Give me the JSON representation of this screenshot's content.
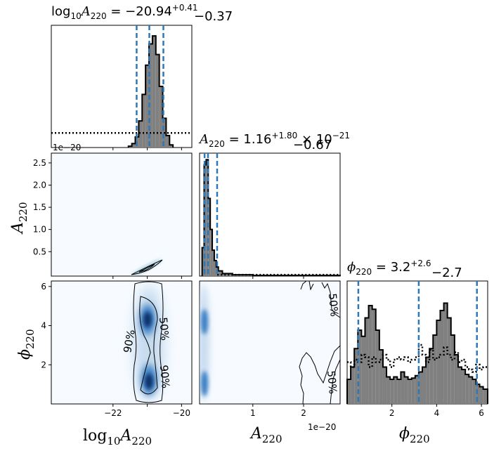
{
  "chart_data": {
    "type": "corner",
    "parameters": [
      "log10A220",
      "A220",
      "phi220"
    ],
    "titles": {
      "log10A220": {
        "prefix": "log",
        "sub": "10",
        "sym": "A",
        "symsub": "220",
        "eq": " = −20.94",
        "plus": "+0.41",
        "minus": "−0.37"
      },
      "A220": {
        "sym": "A",
        "symsub": "220",
        "eq": " = 1.16",
        "plus": "+1.80",
        "minus": "−0.67",
        "suffix": " × 10",
        "exp": "−21"
      },
      "phi220": {
        "sym": "ϕ",
        "symsub": "220",
        "eq": " = 3.2",
        "plus": "+2.6",
        "minus": "−2.7"
      }
    },
    "axis_labels": {
      "x_log10A220": {
        "prefix": "log",
        "sub": "10",
        "sym": "A",
        "symsub": "220"
      },
      "x_A220": {
        "sym": "A",
        "symsub": "220"
      },
      "x_phi220": {
        "sym": "ϕ",
        "symsub": "220"
      },
      "y_A220": {
        "sym": "A",
        "symsub": "220"
      },
      "y_phi220": {
        "sym": "ϕ",
        "symsub": "220"
      }
    },
    "offset_texts": {
      "a_top": "1e−20",
      "a_bottom": "1e−20"
    },
    "ranges": {
      "log10A220": [
        -23.8,
        -19.7
      ],
      "A220": [
        -0.05,
        2.72
      ],
      "A220_units": "1e-20",
      "phi220": [
        0.0,
        6.28
      ]
    },
    "ticks": {
      "log10A220": {
        "values": [
          -22,
          -21,
          -20
        ],
        "labels": [
          "−22",
          "",
          "−20"
        ]
      },
      "A220_x": {
        "values": [
          1,
          2
        ],
        "labels": [
          "1",
          "2"
        ]
      },
      "A220_y": {
        "values": [
          0.5,
          1.0,
          1.5,
          2.0,
          2.5
        ],
        "labels": [
          "0.5",
          "1.0",
          "1.5",
          "2.0",
          "2.5"
        ]
      },
      "phi220": {
        "values": [
          2,
          4,
          6
        ],
        "labels": [
          "2",
          "4",
          "6"
        ]
      }
    },
    "quantile_lines": {
      "log10A220": [
        -21.31,
        -20.94,
        -20.53
      ],
      "A220": [
        0.049,
        0.116,
        0.296
      ],
      "phi220": [
        0.5,
        3.2,
        5.8
      ]
    },
    "hist_log10A220": {
      "bin_edges": [
        -21.55,
        -21.45,
        -21.35,
        -21.25,
        -21.15,
        -21.05,
        -20.95,
        -20.85,
        -20.75,
        -20.65,
        -20.55,
        -20.45,
        -20.35,
        -20.25
      ],
      "posterior": [
        1,
        3,
        8,
        20,
        40,
        62,
        78,
        84,
        70,
        46,
        22,
        9,
        2
      ],
      "prior_level": 11,
      "ymax": 92
    },
    "hist_A220": {
      "bin_edges": [
        0.0,
        0.04,
        0.08,
        0.12,
        0.16,
        0.2,
        0.24,
        0.28,
        0.32,
        0.4,
        0.6,
        1.0,
        2.72
      ],
      "posterior": [
        22,
        86,
        90,
        60,
        36,
        20,
        12,
        7,
        4,
        2,
        1,
        0.5
      ],
      "prior_level": 1,
      "ymax": 95
    },
    "hist_phi220": {
      "bin_edges": [
        0.0,
        0.16,
        0.32,
        0.48,
        0.64,
        0.8,
        0.96,
        1.12,
        1.28,
        1.44,
        1.6,
        1.76,
        1.92,
        2.08,
        2.24,
        2.4,
        2.56,
        2.72,
        2.88,
        3.04,
        3.2,
        3.36,
        3.52,
        3.68,
        3.84,
        4.0,
        4.16,
        4.32,
        4.48,
        4.64,
        4.8,
        4.96,
        5.12,
        5.28,
        5.44,
        5.6,
        5.76,
        5.92,
        6.08,
        6.28
      ],
      "posterior": [
        20,
        30,
        45,
        60,
        55,
        70,
        80,
        77,
        60,
        44,
        30,
        22,
        20,
        22,
        20,
        26,
        22,
        20,
        21,
        23,
        26,
        30,
        38,
        45,
        56,
        68,
        76,
        82,
        70,
        56,
        40,
        30,
        28,
        24,
        22,
        20,
        16,
        14,
        12
      ],
      "prior": [
        34,
        30,
        36,
        34,
        40,
        38,
        30,
        38,
        34,
        36,
        40,
        36,
        30,
        36,
        38,
        36,
        38,
        34,
        36,
        38,
        48,
        40,
        34,
        44,
        36,
        38,
        40,
        46,
        40,
        36,
        42,
        34,
        36,
        30,
        28,
        26,
        32,
        28,
        30
      ],
      "ymax": 100
    },
    "contour_labels": [
      "50%",
      "90%"
    ]
  },
  "colors": {
    "hist_fill": "#808080",
    "quantile_line": "#2e78b8",
    "kde_dark": "#08306b",
    "kde_mid": "#3b7fc4",
    "kde_light": "#c6dbef",
    "panel_bg": "#f7fbff"
  }
}
